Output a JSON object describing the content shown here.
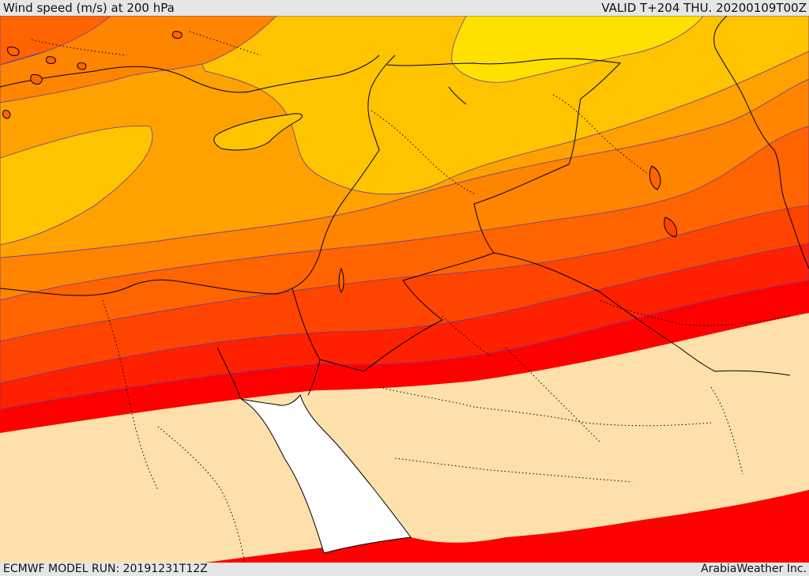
{
  "header": {
    "title": "Wind speed (m/s) at 200 hPa",
    "valid": "VALID T+204 THU. 20200109T00Z"
  },
  "footer": {
    "model_run": "ECMWF MODEL RUN: 20191231T12Z",
    "credit": "ArabiaWeather Inc."
  },
  "colors": {
    "sea": "#ffffff",
    "band_lowest": "#fde0ac",
    "band_1": "#ffe100",
    "band_2": "#ffc400",
    "band_3": "#ffa200",
    "band_4": "#ff8400",
    "band_5": "#ff6400",
    "band_6": "#ff4400",
    "band_7": "#ff2000",
    "band_8": "#ff0000",
    "contour": "#4a4a8a",
    "coast": "#000000"
  }
}
